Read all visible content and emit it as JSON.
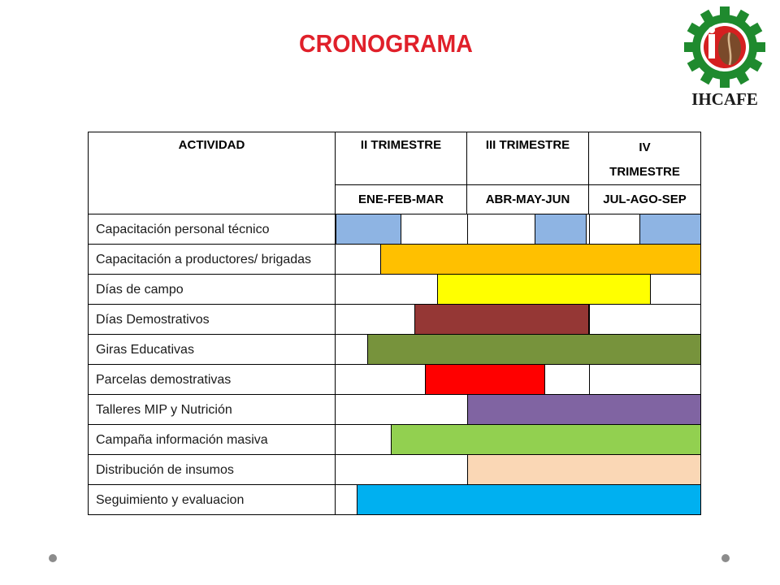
{
  "title": "CRONOGRAMA",
  "logo": {
    "text": "IHCAFE",
    "icon": "ihcafe-gear-logo"
  },
  "table": {
    "headers": {
      "activity": "ACTIVIDAD",
      "q2": "II TRIMESTRE",
      "q3": "III TRIMESTRE",
      "q4": "IV TRIMESTRE",
      "q2_months": "ENE-FEB-MAR",
      "q3_months": "ABR-MAY-JUN",
      "q4_months": "JUL-AGO-SEP"
    },
    "rows": [
      {
        "activity": "Capacitación personal técnico",
        "segments": [
          {
            "start": 0.0,
            "end": 0.5,
            "color": "#8eb4e3"
          },
          {
            "start": 1.55,
            "end": 1.98,
            "color": "#8eb4e3"
          },
          {
            "start": 2.45,
            "end": 3.0,
            "color": "#8eb4e3"
          }
        ]
      },
      {
        "activity": "Capacitación a productores/ brigadas",
        "segments": [
          {
            "start": 0.34,
            "end": 3.0,
            "color": "#ffc000"
          }
        ]
      },
      {
        "activity": "Días de campo",
        "segments": [
          {
            "start": 0.77,
            "end": 2.55,
            "color": "#ffff00"
          }
        ]
      },
      {
        "activity": "Días Demostrativos",
        "segments": [
          {
            "start": 0.6,
            "end": 2.0,
            "color": "#953735"
          }
        ]
      },
      {
        "activity": "Giras Educativas",
        "segments": [
          {
            "start": 0.24,
            "end": 3.0,
            "color": "#77933c"
          }
        ]
      },
      {
        "activity": "Parcelas demostrativas",
        "segments": [
          {
            "start": 0.68,
            "end": 1.64,
            "color": "#ff0000"
          }
        ]
      },
      {
        "activity": "Talleres MIP y Nutrición",
        "segments": [
          {
            "start": 1.0,
            "end": 3.0,
            "color": "#8064a2"
          }
        ]
      },
      {
        "activity": "Campaña información masiva",
        "segments": [
          {
            "start": 0.42,
            "end": 3.0,
            "color": "#92d050"
          }
        ]
      },
      {
        "activity": "Distribución de insumos",
        "segments": [
          {
            "start": 1.0,
            "end": 3.0,
            "color": "#fad7b5"
          }
        ]
      },
      {
        "activity": "Seguimiento y evaluacion",
        "segments": [
          {
            "start": 0.16,
            "end": 3.0,
            "color": "#00b0f0"
          }
        ]
      }
    ]
  }
}
